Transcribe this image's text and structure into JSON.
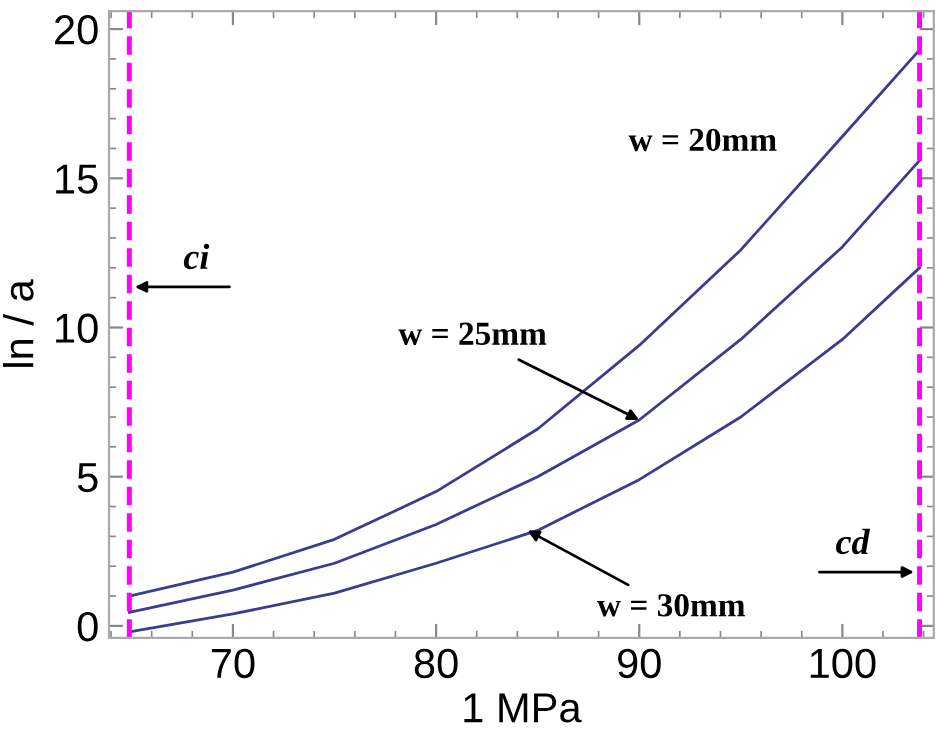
{
  "chart_data": {
    "type": "line",
    "xlabel": "1 MPa",
    "ylabel": "ln / a",
    "xlim": [
      63.9,
      104.5
    ],
    "ylim": [
      -0.4,
      20.6
    ],
    "xticks": [
      70,
      80,
      90,
      100
    ],
    "yticks": [
      0,
      5,
      10,
      15,
      20
    ],
    "grid": false,
    "line_style": "solid",
    "marker": "none",
    "series": [
      {
        "color": "#3b3b8f",
        "x": [
          64.9,
          70,
          75,
          80,
          85,
          90,
          95,
          100,
          103.8
        ],
        "values": [
          1.0,
          1.8,
          2.9,
          4.5,
          6.6,
          9.4,
          12.6,
          16.4,
          19.3
        ]
      },
      {
        "color": "#3b3b8f",
        "x": [
          64.9,
          70,
          75,
          80,
          85,
          90,
          95,
          100,
          103.8
        ],
        "values": [
          0.45,
          1.2,
          2.1,
          3.4,
          5.0,
          6.9,
          9.6,
          12.7,
          15.6
        ]
      },
      {
        "color": "#3b3b8f",
        "x": [
          64.9,
          70,
          75,
          80,
          85,
          90,
          95,
          100,
          103.8
        ],
        "values": [
          -0.2,
          0.4,
          1.1,
          2.1,
          3.2,
          4.9,
          7.0,
          9.6,
          12.0
        ]
      }
    ],
    "ref_lines": [
      {
        "axis": "x",
        "value": 64.9,
        "label": "ci",
        "color": "#ff00ff",
        "line_style": "dashed"
      },
      {
        "axis": "x",
        "value": 103.8,
        "label": "cd",
        "color": "#ff00ff",
        "line_style": "dashed"
      }
    ],
    "annotations": [
      "w = 20mm",
      {
        "text": "w = 25mm",
        "x": 90,
        "y": 6.9
      },
      {
        "text": "w = 30mm",
        "x": 84.5,
        "y": 3.2
      }
    ]
  }
}
